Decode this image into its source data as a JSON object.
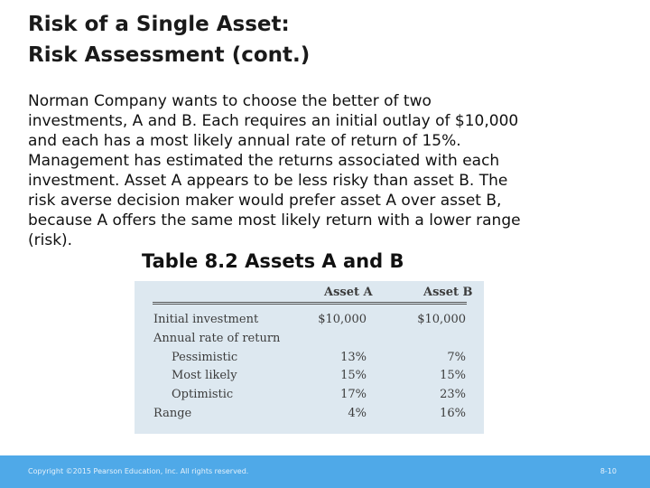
{
  "slide": {
    "title_lines": [
      "Risk of a Single Asset:",
      "Risk Assessment (cont.)"
    ],
    "body_lines": [
      "Norman Company wants to choose the better of two",
      "investments, A and B. Each requires an initial outlay of $10,000",
      "and each has a most likely annual rate of return of 15%.",
      "Management has estimated the returns associated with each",
      "investment. Asset A appears to be less risky than asset B. The",
      "risk averse decision maker would prefer asset A over asset B,",
      "because A offers the same most likely return with a lower range",
      "(risk)."
    ],
    "table_title": "Table 8.2 Assets A and B"
  },
  "table": {
    "headers": [
      "Asset A",
      "Asset B"
    ],
    "rows": [
      {
        "label": "Initial investment",
        "a": "$10,000",
        "b": "$10,000"
      },
      {
        "label": "Annual rate of return",
        "a": "",
        "b": ""
      },
      {
        "label": "Pessimistic",
        "a": "13%",
        "b": "7%"
      },
      {
        "label": "Most likely",
        "a": "15%",
        "b": "15%"
      },
      {
        "label": "Optimistic",
        "a": "17%",
        "b": "23%"
      },
      {
        "label": "Range",
        "a": "4%",
        "b": "16%"
      }
    ]
  },
  "footer": {
    "copyright": "Copyright ©2015 Pearson Education, Inc. All rights reserved.",
    "page": "8-10"
  },
  "colors": {
    "footer_bar": "#4fa9e8",
    "table_background": "#dde8f0"
  }
}
